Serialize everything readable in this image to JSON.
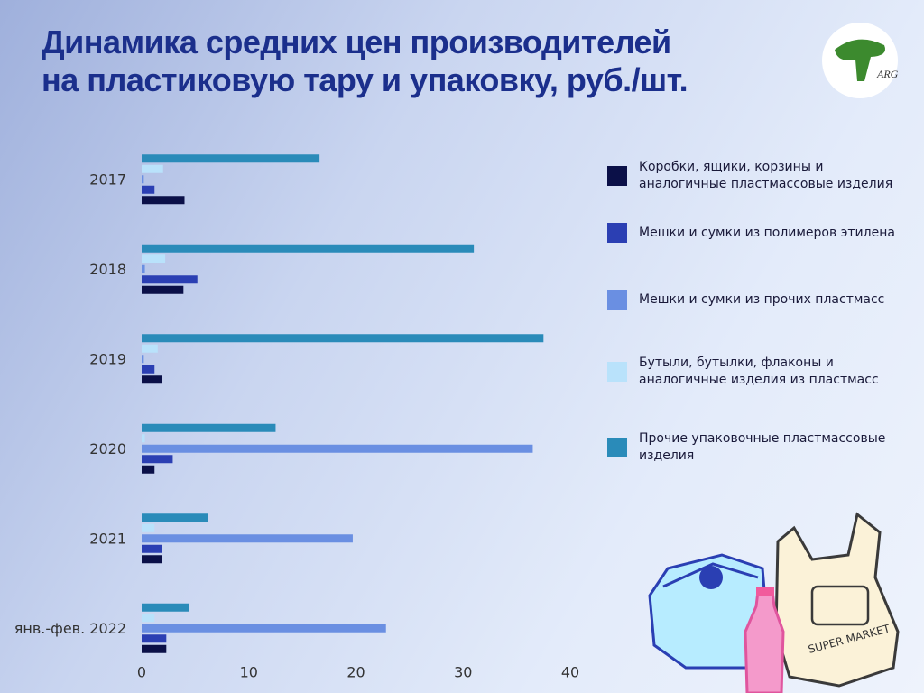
{
  "chart_data": {
    "type": "hbar",
    "title": "Динамика средних цен производителей на пластиковую тару и упаковку, руб./шт.",
    "logo_text": "ARG",
    "illustration_text": "SUPER MARKET",
    "categories": [
      "2017",
      "2018",
      "2019",
      "2020",
      "2021",
      "янв.-фев. 2022"
    ],
    "series": [
      {
        "name": "Коробки, ящики, корзины и аналогичные пластмассовые изделия",
        "color": "#0b1048",
        "values": [
          4.0,
          3.9,
          1.9,
          1.2,
          1.9,
          2.3
        ]
      },
      {
        "name": "Мешки и сумки из полимеров этилена",
        "color": "#2b3fb3",
        "values": [
          1.2,
          5.2,
          1.2,
          2.9,
          1.9,
          2.3
        ]
      },
      {
        "name": "Мешки и сумки из прочих пластмасс",
        "color": "#6a8fe2",
        "values": [
          0.2,
          0.3,
          0.2,
          36.5,
          19.7,
          22.8
        ]
      },
      {
        "name": "Бутыли, бутылки, флаконы и аналогичные изделия из пластмасс",
        "color": "#b9e2fb",
        "values": [
          2.0,
          2.2,
          1.5,
          0.3,
          1.2,
          1.2
        ]
      },
      {
        "name": "Прочие упаковочные пластмассовые изделия",
        "color": "#2a8bb9",
        "values": [
          16.6,
          31.0,
          37.5,
          12.5,
          6.2,
          4.4
        ]
      }
    ],
    "xlim": [
      0,
      40
    ],
    "xticks": [
      0,
      10,
      20,
      30,
      40
    ],
    "grid": false
  }
}
